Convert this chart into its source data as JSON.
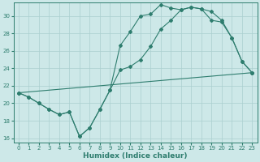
{
  "xlabel": "Humidex (Indice chaleur)",
  "background_color": "#cde8e8",
  "grid_color": "#aacfcf",
  "line_color": "#2e7d6e",
  "xlim": [
    -0.5,
    23.5
  ],
  "ylim": [
    15.5,
    31.5
  ],
  "xticks": [
    0,
    1,
    2,
    3,
    4,
    5,
    6,
    7,
    8,
    9,
    10,
    11,
    12,
    13,
    14,
    15,
    16,
    17,
    18,
    19,
    20,
    21,
    22,
    23
  ],
  "yticks": [
    16,
    18,
    20,
    22,
    24,
    26,
    28,
    30
  ],
  "line1_x": [
    0,
    1,
    2,
    3,
    4,
    5,
    6,
    7,
    8,
    9,
    10,
    11,
    12,
    13,
    14,
    15,
    16,
    17,
    18,
    19,
    20,
    21,
    22,
    23
  ],
  "line1_y": [
    21.2,
    20.7,
    20.0,
    19.3,
    18.7,
    19.0,
    16.2,
    17.2,
    19.3,
    21.5,
    26.6,
    28.2,
    30.0,
    30.2,
    31.3,
    30.9,
    30.7,
    31.0,
    30.8,
    30.5,
    29.5,
    27.5,
    24.8,
    23.5
  ],
  "line2_x": [
    0,
    1,
    2,
    3,
    4,
    5,
    6,
    7,
    8,
    9,
    10,
    11,
    12,
    13,
    14,
    15,
    16,
    17,
    18,
    19,
    20,
    21,
    22,
    23
  ],
  "line2_y": [
    21.2,
    20.7,
    20.0,
    19.3,
    18.7,
    19.0,
    16.2,
    17.2,
    19.3,
    21.5,
    23.8,
    24.2,
    25.0,
    26.5,
    28.5,
    29.5,
    30.7,
    31.0,
    30.8,
    29.5,
    29.3,
    27.5,
    24.8,
    23.5
  ],
  "line3_x": [
    0,
    23
  ],
  "line3_y": [
    21.2,
    23.5
  ]
}
